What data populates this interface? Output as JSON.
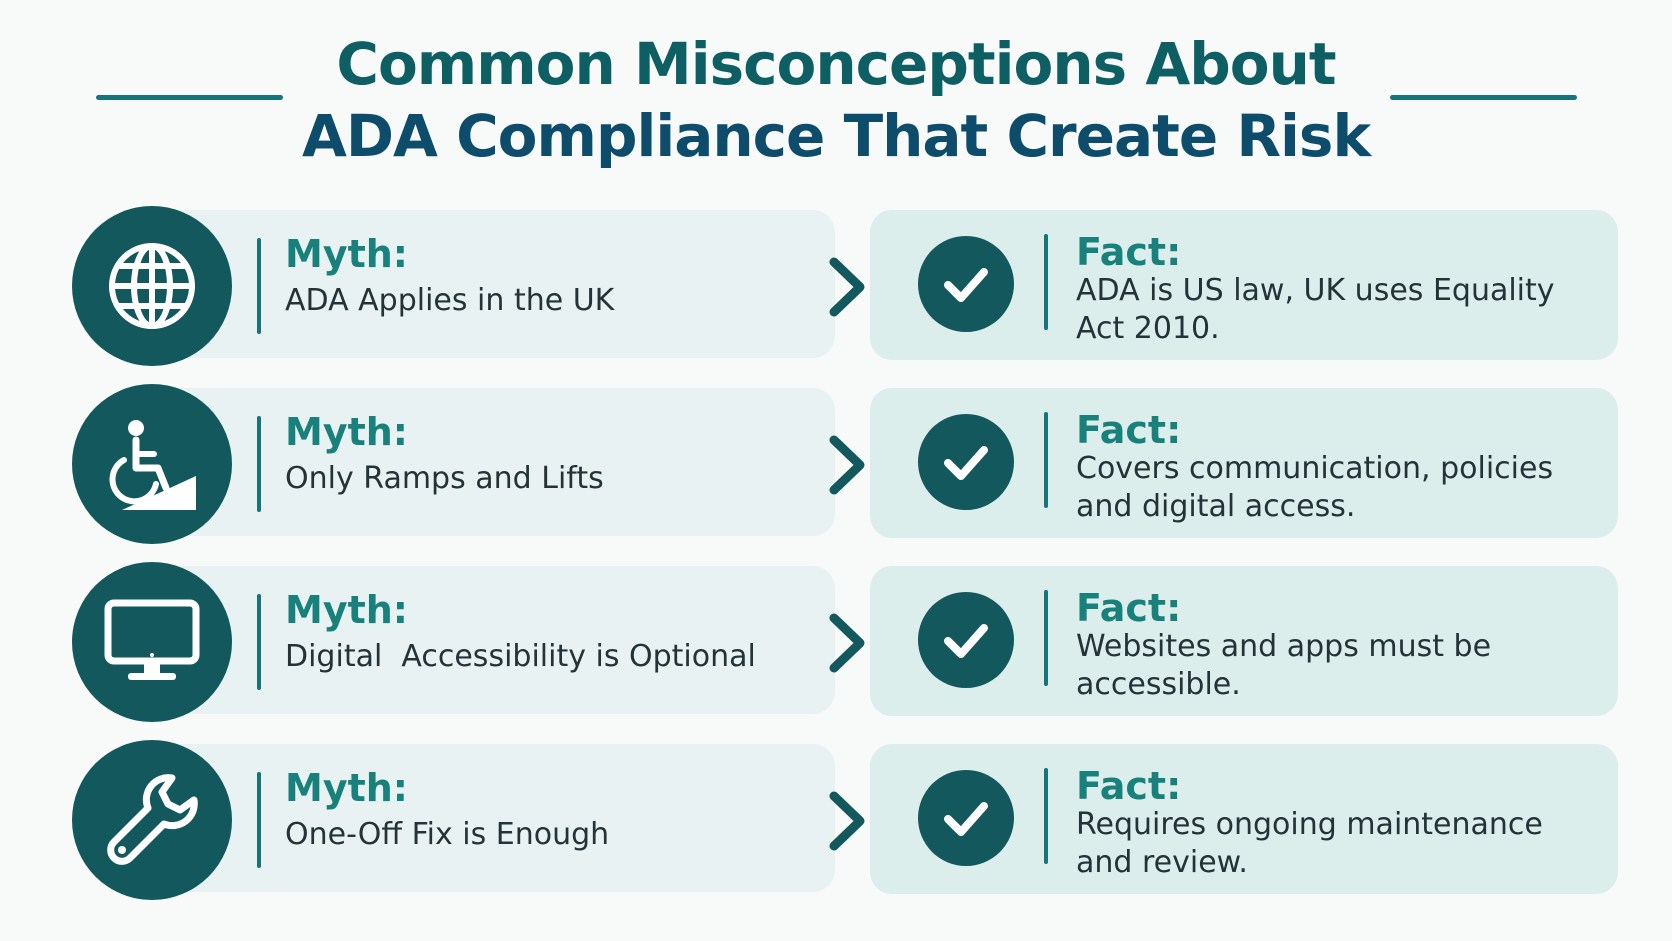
{
  "header": {
    "title_line1": "Common Misconceptions About",
    "title_line2": "ADA Compliance That Create Risk"
  },
  "rows": [
    {
      "icon": "globe-icon",
      "myth_label": "Myth:",
      "myth_text": "ADA Applies in the UK",
      "fact_label": "Fact:",
      "fact_text": "ADA is US law, UK uses Equality Act 2010."
    },
    {
      "icon": "wheelchair-ramp-icon",
      "myth_label": "Myth:",
      "myth_text": "Only Ramps and Lifts",
      "fact_label": "Fact:",
      "fact_text": "Covers communication, policies and digital access."
    },
    {
      "icon": "monitor-icon",
      "myth_label": "Myth:",
      "myth_text": "Digital  Accessibility is Optional",
      "fact_label": "Fact:",
      "fact_text": "Websites and apps must be accessible."
    },
    {
      "icon": "wrench-icon",
      "myth_label": "Myth:",
      "myth_text": "One-Off Fix is Enough",
      "fact_label": "Fact:",
      "fact_text": "Requires ongoing maintenance and review."
    }
  ],
  "colors": {
    "primary_dark": "#12585c",
    "accent_teal": "#18817c",
    "title_navy": "#0d4c6a",
    "myth_card_bg": "#e9f2f2",
    "fact_card_bg": "#dbeeec"
  }
}
